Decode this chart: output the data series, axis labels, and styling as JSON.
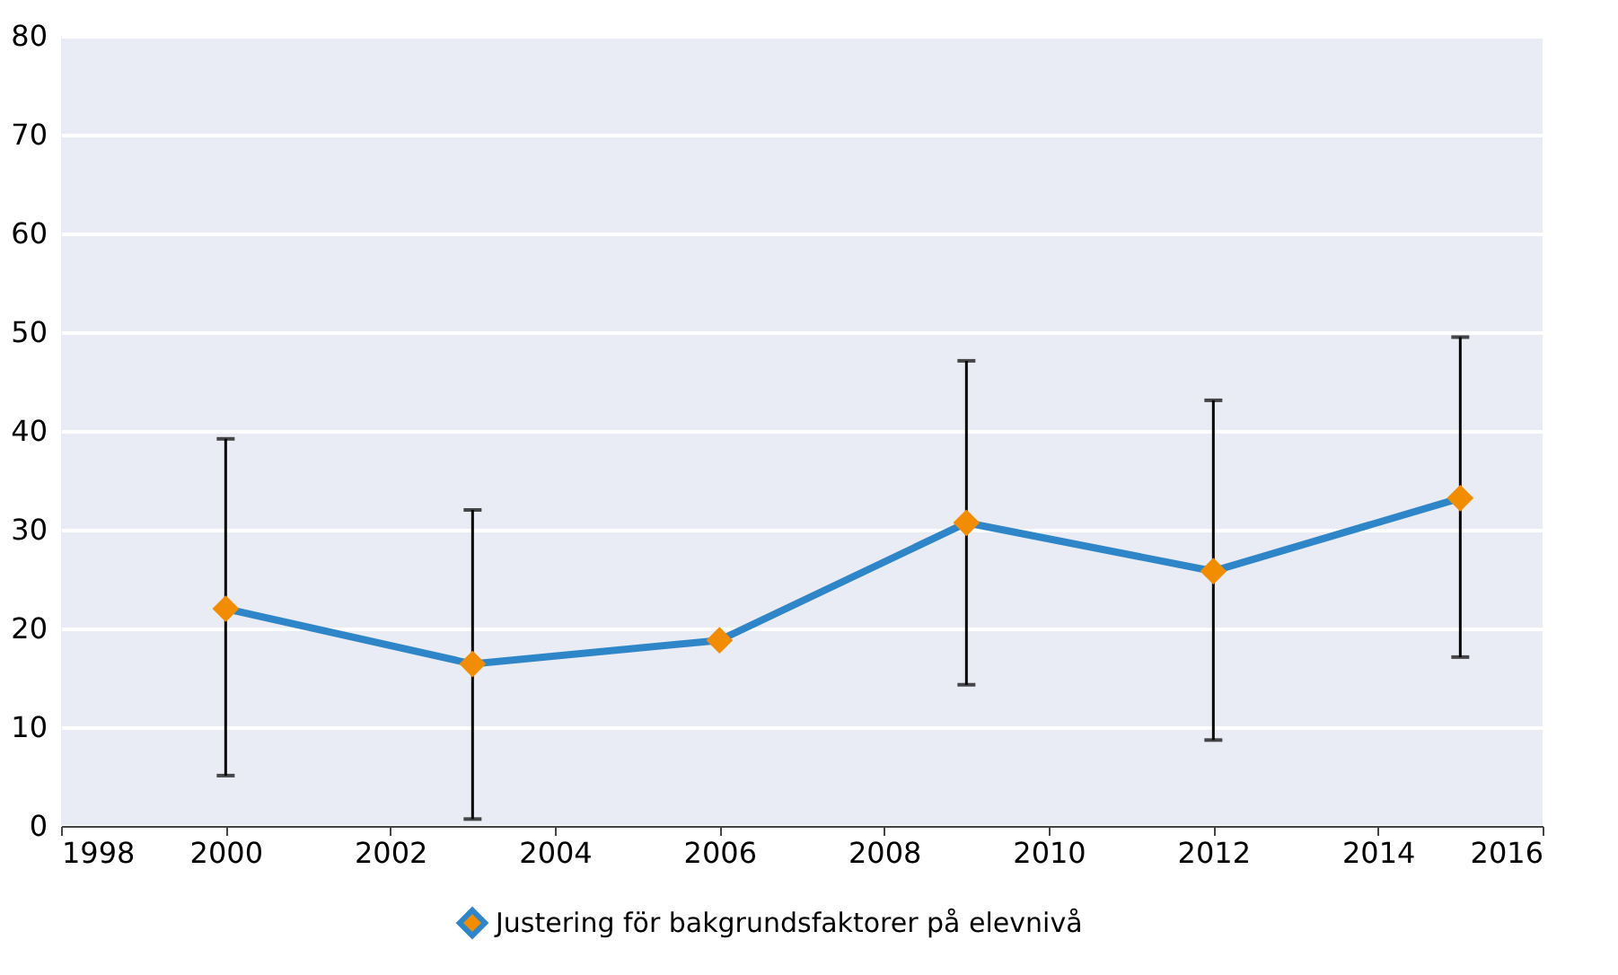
{
  "chart_data": {
    "type": "line",
    "x": [
      2000,
      2003,
      2006,
      2009,
      2012,
      2015
    ],
    "series": [
      {
        "name": "Justering för bakgrundsfaktorer på elevnivå",
        "color": "#2e86c8",
        "colors": [
          "#f28c00",
          "#f28c00",
          "#f28c00",
          "#f28c00",
          "#f28c00",
          "#f28c00"
        ],
        "values": [
          22.0,
          16.4,
          18.8,
          30.7,
          25.8,
          33.2
        ],
        "errors": [
          [
            5.1,
            39.2
          ],
          [
            0.7,
            32.0
          ],
          null,
          [
            14.3,
            47.1
          ],
          [
            8.7,
            43.1
          ],
          [
            17.1,
            49.5
          ]
        ]
      }
    ],
    "xlim": [
      1998,
      2016
    ],
    "xticks": [
      1998,
      2000,
      2002,
      2004,
      2006,
      2008,
      2010,
      2012,
      2014,
      2016
    ],
    "ylim": [
      0,
      80
    ],
    "yticks": [
      0,
      10,
      20,
      30,
      40,
      50,
      60,
      70,
      80
    ],
    "grid": "y",
    "legend": "bottom",
    "marker": "diamond",
    "line_style": "solid"
  }
}
